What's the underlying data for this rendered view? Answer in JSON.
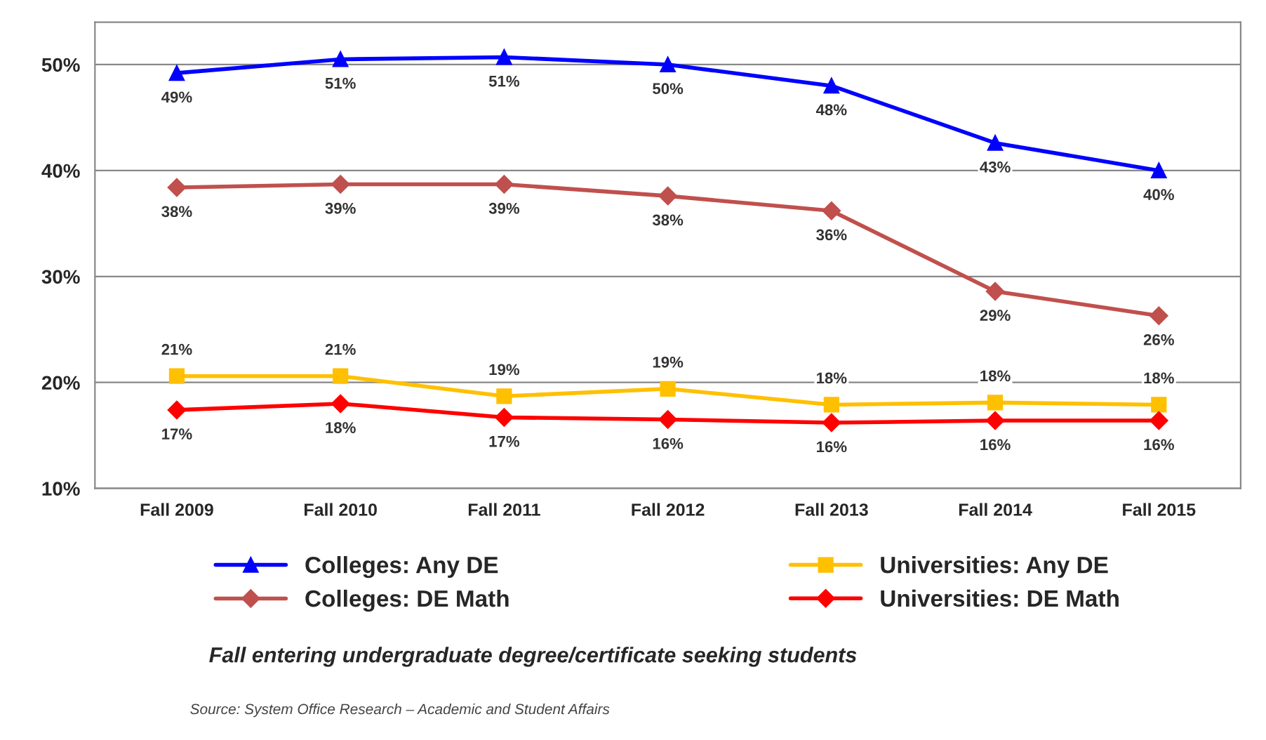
{
  "chart_data": {
    "type": "line",
    "categories": [
      "Fall 2009",
      "Fall 2010",
      "Fall 2011",
      "Fall 2012",
      "Fall 2013",
      "Fall 2014",
      "Fall 2015"
    ],
    "series": [
      {
        "name": "Colleges: Any DE",
        "color": "#0000ff",
        "marker": "triangle",
        "values": [
          49.2,
          50.5,
          50.7,
          50.0,
          48.0,
          42.6,
          40.0
        ],
        "value_labels": [
          "49%",
          "51%",
          "51%",
          "50%",
          "48%",
          "43%",
          "40%"
        ]
      },
      {
        "name": "Colleges: DE Math",
        "color": "#c0504d",
        "marker": "diamond",
        "values": [
          38.4,
          38.7,
          38.7,
          37.6,
          36.2,
          28.6,
          26.3
        ],
        "value_labels": [
          "38%",
          "39%",
          "39%",
          "38%",
          "36%",
          "29%",
          "26%"
        ]
      },
      {
        "name": "Universities: Any DE",
        "color": "#ffc000",
        "marker": "square",
        "values": [
          20.6,
          20.6,
          18.7,
          19.4,
          17.9,
          18.1,
          17.9
        ],
        "value_labels": [
          "21%",
          "21%",
          "19%",
          "19%",
          "18%",
          "18%",
          "18%"
        ]
      },
      {
        "name": "Universities: DE Math",
        "color": "#ff0000",
        "marker": "diamond",
        "values": [
          17.4,
          18.0,
          16.7,
          16.5,
          16.2,
          16.4,
          16.4
        ],
        "value_labels": [
          "17%",
          "18%",
          "17%",
          "16%",
          "16%",
          "16%",
          "16%"
        ]
      }
    ],
    "ylim": [
      10,
      54
    ],
    "yticks": [
      {
        "value": 10,
        "label": "10%"
      },
      {
        "value": 20,
        "label": "20%"
      },
      {
        "value": 30,
        "label": "30%"
      },
      {
        "value": 40,
        "label": "40%"
      },
      {
        "value": 50,
        "label": "50%"
      }
    ],
    "grid": "y",
    "legend": "bottom",
    "annotations": [
      "Fall entering undergraduate degree/certificate seeking students",
      "Source: System Office Research – Academic and Student Affairs"
    ]
  }
}
